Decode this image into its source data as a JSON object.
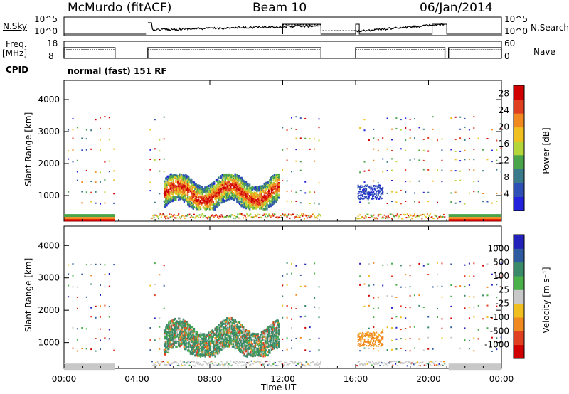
{
  "header": {
    "station": "McMurdo (fitACF)",
    "beam": "Beam 10",
    "date": "06/Jan/2014"
  },
  "noise_panel": {
    "left_label": "N.Sky",
    "right_label": "N.Search",
    "left_ticks": [
      "10^5",
      "10^0"
    ],
    "right_ticks": [
      "10^5",
      "10^0"
    ]
  },
  "freq_panel": {
    "left_label_line1": "Freq.",
    "left_label_line2": "[MHz]",
    "right_label": "Nave",
    "left_ticks": [
      "18",
      "8"
    ],
    "right_ticks": [
      "60",
      "0"
    ]
  },
  "cpid": {
    "label": "CPID",
    "value": "normal (fast) 151 RF"
  },
  "colors": {
    "power_scale": [
      "#2222dd",
      "#2e4fb5",
      "#3a7a8a",
      "#4aa54a",
      "#b5d63a",
      "#f0c020",
      "#f08a20",
      "#e04020",
      "#d00000"
    ],
    "velocity_scale": [
      "#d00000",
      "#e04020",
      "#f08a20",
      "#f0c020",
      "#c8c8c8",
      "#4ab04a",
      "#3a8a6a",
      "#2e5aa0",
      "#2222bb"
    ]
  },
  "chart_data": [
    {
      "type": "heatmap",
      "title": "",
      "xlabel": "Time UT",
      "ylabel": "Slant Range [km]",
      "x_ticks": [
        "00:00",
        "04:00",
        "08:00",
        "12:00",
        "16:00",
        "20:00",
        "00:00"
      ],
      "x_range_hours": [
        0,
        24
      ],
      "y_ticks": [
        1000,
        2000,
        3000,
        4000
      ],
      "ylim": [
        200,
        4600
      ],
      "colorbar": {
        "label": "Power [dB]",
        "ticks": [
          4,
          8,
          12,
          16,
          20,
          24,
          28
        ],
        "range": [
          0,
          30
        ]
      },
      "data_gaps_hours": [
        [
          2.8,
          4.6
        ],
        [
          14.1,
          16.0
        ],
        [
          20.9,
          21.1
        ]
      ],
      "main_echo_region": {
        "time_hours": [
          5.5,
          11.8
        ],
        "range_km": [
          600,
          1700
        ],
        "peak_power_dB": 28
      }
    },
    {
      "type": "heatmap",
      "title": "",
      "xlabel": "Time UT",
      "ylabel": "Slant Range [km]",
      "x_ticks": [
        "00:00",
        "04:00",
        "08:00",
        "12:00",
        "16:00",
        "20:00",
        "00:00"
      ],
      "x_range_hours": [
        0,
        24
      ],
      "y_ticks": [
        1000,
        2000,
        3000,
        4000
      ],
      "ylim": [
        200,
        4600
      ],
      "colorbar": {
        "label": "Velocity [m s⁻¹]",
        "ticks": [
          -1000,
          -500,
          -100,
          -25,
          25,
          100,
          500,
          1000
        ],
        "tick_labels": [
          "-1000",
          "-500",
          "-100",
          "-25",
          "25",
          "100",
          "500",
          "1000"
        ]
      },
      "main_echo_region": {
        "time_hours": [
          5.5,
          11.8
        ],
        "range_km": [
          600,
          1800
        ]
      }
    }
  ]
}
